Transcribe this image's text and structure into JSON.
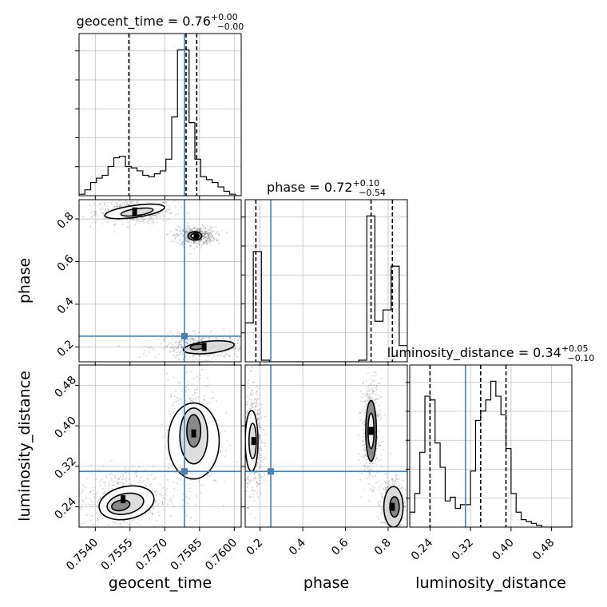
{
  "chart_data": {
    "type": "corner",
    "parameters": [
      "geocent_time",
      "phase",
      "luminosity_distance"
    ],
    "truths": {
      "geocent_time": 0.75785,
      "phase": 0.25,
      "luminosity_distance": 0.31
    },
    "colors": {
      "truth": "#4682b4",
      "hist": "#000000",
      "grid": "#c0c0c0",
      "scatter": "#444444"
    },
    "grid": true,
    "titles": [
      {
        "param": "geocent_time",
        "text": "geocent_time = 0.76",
        "sup": "+0.00",
        "sub": "−0.00"
      },
      {
        "param": "phase",
        "text": "phase = 0.72",
        "sup": "+0.10",
        "sub": "−0.54"
      },
      {
        "param": "luminosity_distance",
        "text": "luminosity_distance = 0.34",
        "sup": "+0.05",
        "sub": "−0.10"
      }
    ],
    "axis_labels": {
      "x": [
        "geocent_time",
        "phase",
        "luminosity_distance"
      ],
      "y": [
        "phase",
        "luminosity_distance"
      ]
    },
    "axes": {
      "geocent_time": {
        "range": [
          0.7533,
          0.7603
        ],
        "ticks": [
          "0.7540",
          "0.7555",
          "0.7570",
          "0.7585",
          "0.7600"
        ],
        "tick_values": [
          0.754,
          0.7555,
          0.757,
          0.7585,
          0.76
        ]
      },
      "phase": {
        "range": [
          0.13,
          0.89
        ],
        "ticks": [
          "0.2",
          "0.4",
          "0.6",
          "0.8"
        ],
        "tick_values": [
          0.2,
          0.4,
          0.6,
          0.8
        ]
      },
      "luminosity_distance": {
        "range": [
          0.2,
          0.52
        ],
        "ticks": [
          "0.24",
          "0.32",
          "0.40",
          "0.48"
        ],
        "tick_values": [
          0.24,
          0.32,
          0.4,
          0.48
        ]
      }
    },
    "histograms": {
      "geocent_time": {
        "edges": [
          0.7533,
          0.75355,
          0.7538,
          0.75405,
          0.7543,
          0.75455,
          0.7548,
          0.75505,
          0.7553,
          0.75555,
          0.7558,
          0.75605,
          0.7563,
          0.75655,
          0.7568,
          0.75705,
          0.7573,
          0.75755,
          0.7578,
          0.75805,
          0.7583,
          0.75855,
          0.7588,
          0.75905,
          0.7593,
          0.75955,
          0.7598,
          0.76005,
          0.7603
        ],
        "counts": [
          1,
          4,
          9,
          12,
          14,
          20,
          26,
          27,
          20,
          19,
          17,
          14,
          13,
          15,
          17,
          25,
          54,
          100,
          100,
          50,
          25,
          13,
          11,
          9,
          6,
          3,
          1,
          0
        ],
        "quantiles": [
          0.75545,
          0.75792,
          0.75838
        ]
      },
      "phase": {
        "edges": [
          0.13,
          0.168,
          0.206,
          0.244,
          0.282,
          0.32,
          0.358,
          0.396,
          0.434,
          0.472,
          0.51,
          0.548,
          0.586,
          0.624,
          0.662,
          0.7,
          0.738,
          0.776,
          0.814,
          0.852,
          0.89
        ],
        "counts": [
          24,
          68,
          1,
          0,
          0,
          0,
          0,
          0,
          0,
          0,
          0,
          0,
          0,
          0,
          1,
          90,
          25,
          32,
          59,
          10
        ],
        "quantiles": [
          0.18,
          0.72,
          0.82
        ]
      },
      "luminosity_distance": {
        "edges": [
          0.2,
          0.21,
          0.22,
          0.23,
          0.24,
          0.25,
          0.26,
          0.27,
          0.28,
          0.29,
          0.3,
          0.31,
          0.32,
          0.33,
          0.34,
          0.35,
          0.36,
          0.37,
          0.38,
          0.39,
          0.4,
          0.41,
          0.42,
          0.43,
          0.44,
          0.45,
          0.46,
          0.47,
          0.48,
          0.49,
          0.5,
          0.51,
          0.52
        ],
        "counts": [
          8,
          18,
          40,
          70,
          68,
          45,
          32,
          14,
          16,
          10,
          12,
          12,
          30,
          57,
          62,
          68,
          78,
          70,
          60,
          42,
          18,
          8,
          4,
          3,
          2,
          1,
          0,
          0,
          0,
          0,
          0,
          0
        ],
        "quantiles": [
          0.24,
          0.34,
          0.39
        ]
      }
    },
    "clusters": {
      "phase_vs_geocent_time": [
        {
          "x": 0.7557,
          "y": 0.835,
          "sx": 0.0006,
          "sy": 0.02
        },
        {
          "x": 0.75835,
          "y": 0.72,
          "sx": 0.0003,
          "sy": 0.015
        },
        {
          "x": 0.7587,
          "y": 0.2,
          "sx": 0.0007,
          "sy": 0.02
        }
      ],
      "luminosity_distance_vs_geocent_time": [
        {
          "x": 0.7552,
          "y": 0.255,
          "sx": 0.0007,
          "sy": 0.022
        },
        {
          "x": 0.75825,
          "y": 0.385,
          "sx": 0.0004,
          "sy": 0.04
        }
      ],
      "luminosity_distance_vs_phase": [
        {
          "x": 0.17,
          "y": 0.37,
          "sx": 0.015,
          "sy": 0.04
        },
        {
          "x": 0.72,
          "y": 0.39,
          "sx": 0.015,
          "sy": 0.035
        },
        {
          "x": 0.82,
          "y": 0.24,
          "sx": 0.02,
          "sy": 0.02
        }
      ]
    },
    "contours": {
      "phase_vs_geocent_time": [
        {
          "cx": 0.7557,
          "cy": 0.835,
          "rx": 0.0013,
          "ry": 0.028,
          "rot": -8
        },
        {
          "cx": 0.7558,
          "cy": 0.832,
          "rx": 0.0007,
          "ry": 0.016,
          "rot": -8
        },
        {
          "cx": 0.7583,
          "cy": 0.72,
          "rx": 0.0003,
          "ry": 0.02,
          "rot": 0
        },
        {
          "cx": 0.7583,
          "cy": 0.72,
          "rx": 0.00017,
          "ry": 0.011,
          "rot": 0
        },
        {
          "cx": 0.7589,
          "cy": 0.198,
          "rx": 0.0011,
          "ry": 0.028,
          "rot": -6
        },
        {
          "cx": 0.7584,
          "cy": 0.2,
          "rx": 0.0003,
          "ry": 0.012,
          "rot": -6
        }
      ],
      "luminosity_distance_vs_geocent_time": [
        {
          "cx": 0.75535,
          "cy": 0.248,
          "rx": 0.0012,
          "ry": 0.032,
          "rot": -12
        },
        {
          "cx": 0.7553,
          "cy": 0.246,
          "rx": 0.0008,
          "ry": 0.02,
          "rot": -12
        },
        {
          "cx": 0.7551,
          "cy": 0.243,
          "rx": 0.0004,
          "ry": 0.01,
          "rot": -12
        },
        {
          "cx": 0.75825,
          "cy": 0.37,
          "rx": 0.0011,
          "ry": 0.075,
          "rot": 0
        },
        {
          "cx": 0.75825,
          "cy": 0.38,
          "rx": 0.0006,
          "ry": 0.055,
          "rot": 0
        },
        {
          "cx": 0.75825,
          "cy": 0.39,
          "rx": 0.0003,
          "ry": 0.032,
          "rot": 0
        }
      ],
      "luminosity_distance_vs_phase": [
        {
          "cx": 0.16,
          "cy": 0.37,
          "rx": 0.03,
          "ry": 0.06,
          "rot": 0
        },
        {
          "cx": 0.165,
          "cy": 0.37,
          "rx": 0.017,
          "ry": 0.035,
          "rot": 0
        },
        {
          "cx": 0.72,
          "cy": 0.39,
          "rx": 0.025,
          "ry": 0.06,
          "rot": 0
        },
        {
          "cx": 0.72,
          "cy": 0.39,
          "rx": 0.014,
          "ry": 0.035,
          "rot": 0
        },
        {
          "cx": 0.825,
          "cy": 0.24,
          "rx": 0.045,
          "ry": 0.04,
          "rot": 0
        },
        {
          "cx": 0.83,
          "cy": 0.24,
          "rx": 0.022,
          "ry": 0.02,
          "rot": 0
        }
      ]
    }
  }
}
